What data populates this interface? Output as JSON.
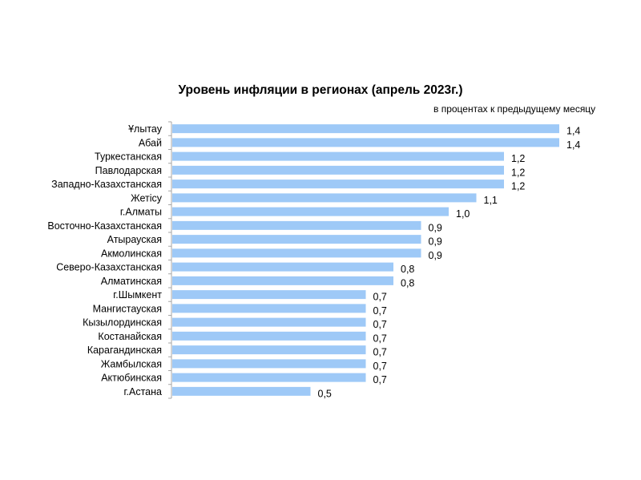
{
  "chart_data": {
    "type": "bar",
    "orientation": "horizontal",
    "title": "Уровень инфляции в регионах (апрель 2023г.)",
    "subtitle": "в процентах к предыдущему месяцу",
    "categories": [
      "Ұлытау",
      "Абай",
      "Туркестанская",
      "Павлодарская",
      "Западно-Казахстанская",
      "Жетісу",
      "г.Алматы",
      "Восточно-Казахстанская",
      "Атырауская",
      "Акмолинская",
      "Северо-Казахстанская",
      "Алматинская",
      "г.Шымкент",
      "Мангистауская",
      "Кызылординская",
      "Костанайская",
      "Карагандинская",
      "Жамбылская",
      "Актюбинская",
      "г.Астана"
    ],
    "values": [
      1.4,
      1.4,
      1.2,
      1.2,
      1.2,
      1.1,
      1.0,
      0.9,
      0.9,
      0.9,
      0.8,
      0.8,
      0.7,
      0.7,
      0.7,
      0.7,
      0.7,
      0.7,
      0.7,
      0.5
    ],
    "value_labels": [
      "1,4",
      "1,4",
      "1,2",
      "1,2",
      "1,2",
      "1,1",
      "1,0",
      "0,9",
      "0,9",
      "0,9",
      "0,8",
      "0,8",
      "0,7",
      "0,7",
      "0,7",
      "0,7",
      "0,7",
      "0,7",
      "0,7",
      "0,5"
    ],
    "xlim": [
      0,
      1.4
    ],
    "grid": false,
    "colors": {
      "bar": "#9ec9f7",
      "axis": "#a6a6a6"
    }
  }
}
